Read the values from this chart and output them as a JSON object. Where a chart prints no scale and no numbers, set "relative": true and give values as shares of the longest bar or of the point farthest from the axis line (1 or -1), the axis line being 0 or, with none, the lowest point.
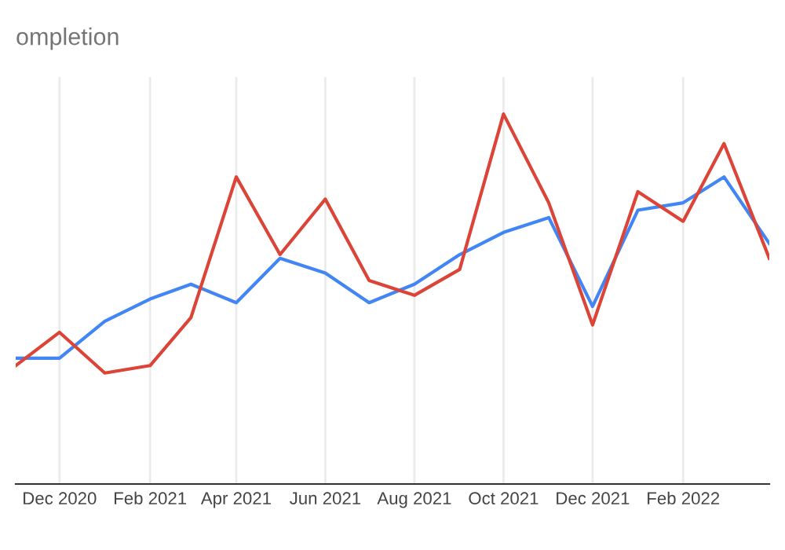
{
  "chart_data": {
    "type": "line",
    "title": "ompletion",
    "relative": true,
    "x": [
      "2020-11",
      "2020-12",
      "2021-01",
      "2021-02",
      "2021-03",
      "2021-04",
      "2021-05",
      "2021-06",
      "2021-07",
      "2021-08",
      "2021-09",
      "2021-10",
      "2021-11",
      "2021-12",
      "2022-01",
      "2022-02",
      "2022-03",
      "2022-04"
    ],
    "series": [
      {
        "color": "#4285f4",
        "values": [
          0.34,
          0.34,
          0.44,
          0.5,
          0.54,
          0.49,
          0.61,
          0.57,
          0.49,
          0.54,
          0.62,
          0.68,
          0.72,
          0.48,
          0.74,
          0.76,
          0.83,
          0.65
        ]
      },
      {
        "color": "#db4437",
        "values": [
          0.32,
          0.41,
          0.3,
          0.32,
          0.45,
          0.83,
          0.62,
          0.77,
          0.55,
          0.51,
          0.58,
          1,
          0.76,
          0.43,
          0.79,
          0.71,
          0.92,
          0.61
        ]
      }
    ],
    "xlim": [
      "2020-11",
      "2022-04"
    ],
    "xticks": [
      {
        "value": "2020-12",
        "label": "Dec 2020"
      },
      {
        "value": "2021-02",
        "label": "Feb 2021"
      },
      {
        "value": "2021-04",
        "label": "Apr 2021"
      },
      {
        "value": "2021-06",
        "label": "Jun 2021"
      },
      {
        "value": "2021-08",
        "label": "Aug 2021"
      },
      {
        "value": "2021-10",
        "label": "Oct 2021"
      },
      {
        "value": "2021-12",
        "label": "Dec 2021"
      },
      {
        "value": "2022-02",
        "label": "Feb 2022"
      }
    ],
    "grid": "x",
    "marker": "none",
    "line_style": "solid",
    "legend": false
  }
}
